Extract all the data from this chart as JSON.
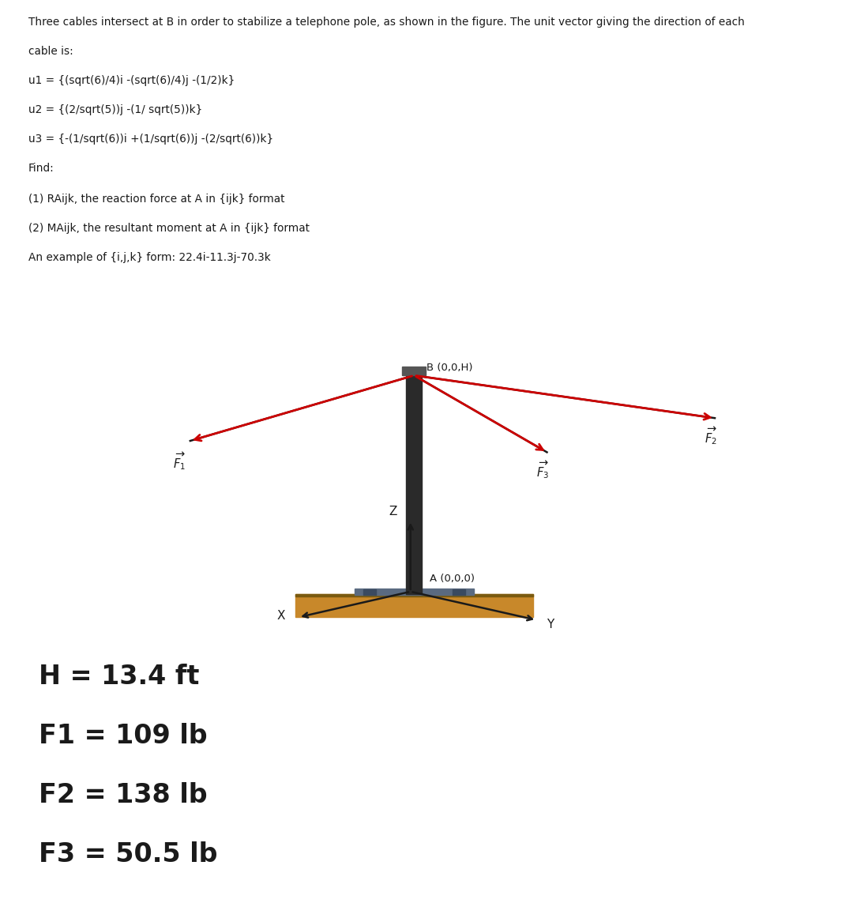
{
  "background_color": "#ffffff",
  "text_color": "#1a1a1a",
  "title_line1": "Three cables intersect at B in order to stabilize a telephone pole, as shown in the figure. The unit vector giving the direction of each",
  "title_line2": "cable is:",
  "u1": "u1 = {(sqrt(6)/4)i -(sqrt(6)/4)j -(1/2)k}",
  "u2": "u2 = {(2/sqrt(5))j -(1/ sqrt(5))k}",
  "u3": "u3 = {-(1/sqrt(6))i +(1/sqrt(6))j -(2/sqrt(6))k}",
  "find_line": "Find:",
  "find1": "(1) RAijk, the reaction force at A in {ijk} format",
  "find2": "(2) MAijk, the resultant moment at A in {ijk} format",
  "example": "An example of {i,j,k} form: 22.4i-11.3j-70.3k",
  "param1": "H = 13.4 ft",
  "param2": "F1 = 109 lb",
  "param3": "F2 = 138 lb",
  "param4": "F3 = 50.5 lb",
  "pole_color": "#2a2a2a",
  "cap_color": "#555555",
  "cable_color": "#1a1a1a",
  "force_color": "#cc0000",
  "ground_color": "#c8882a",
  "ground_dark": "#7a5a10",
  "base_color": "#5a6a80",
  "bolt_color": "#3a4a60",
  "axis_color": "#1a1a1a"
}
